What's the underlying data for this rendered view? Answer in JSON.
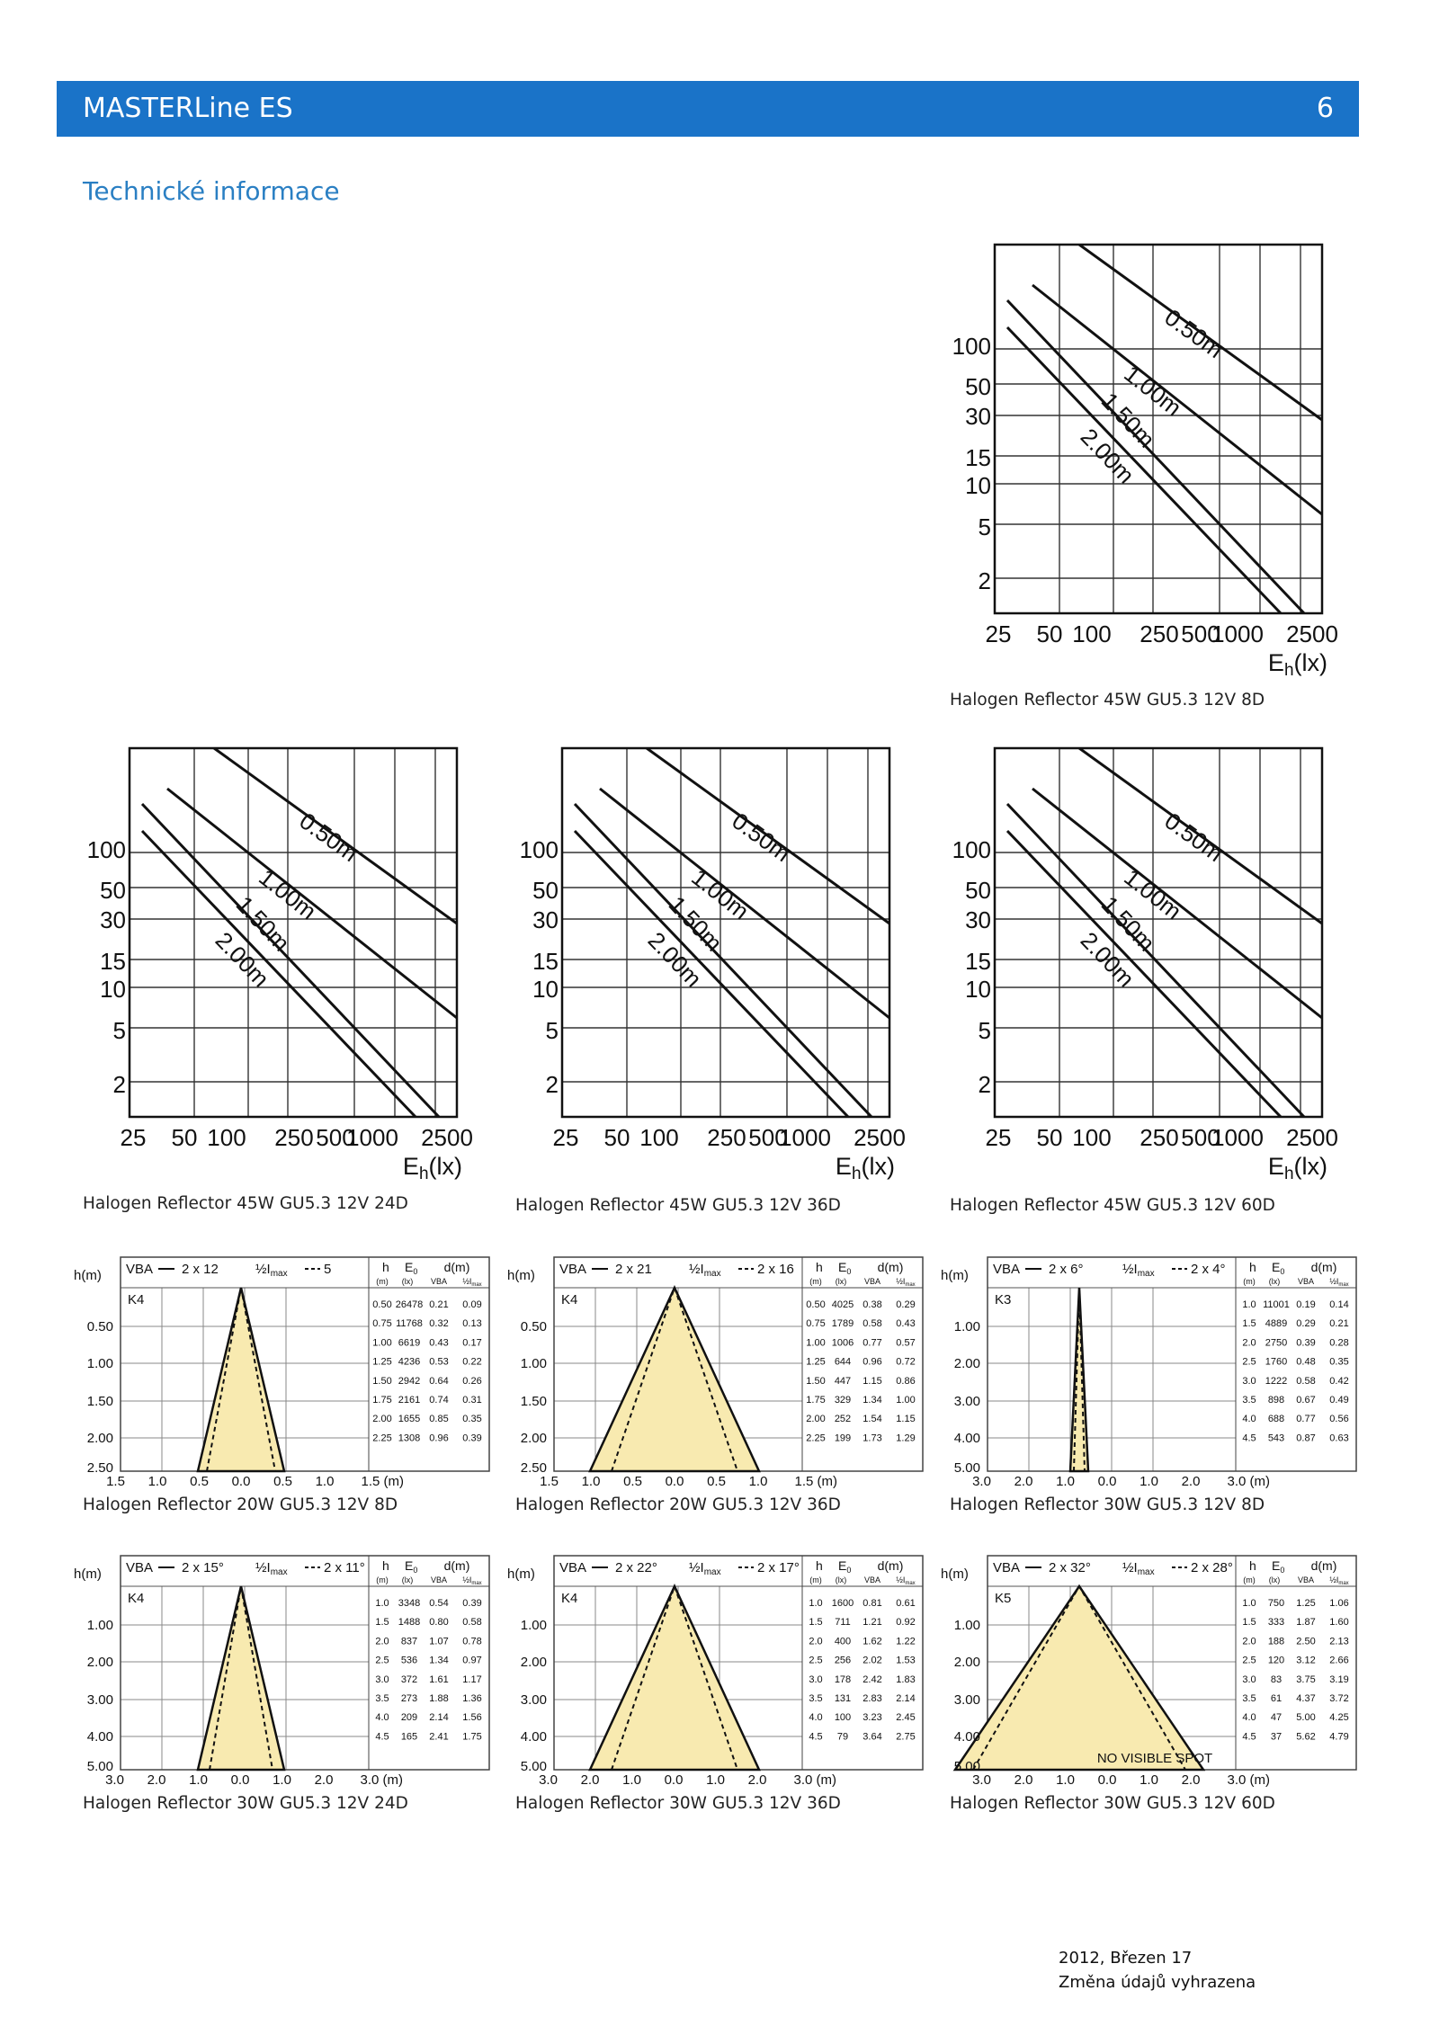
{
  "header": {
    "title": "MASTERLine ES",
    "page_number": "6"
  },
  "section_title": "Technické informace",
  "footer": {
    "date": "2012, Březen 17",
    "note": "Změna údajů vyhrazena"
  },
  "illuminance_charts": {
    "y_ticks": [
      "100",
      "50",
      "30",
      "15",
      "10",
      "5",
      "2"
    ],
    "x_ticks": [
      "25",
      "50",
      "100",
      "250",
      "500",
      "1000",
      "2500"
    ],
    "x_unit": "Eh",
    "x_unit_sub": "h",
    "x_unit_paren": "(lx)",
    "items": [
      {
        "caption": "Halogen Reflector 45W GU5.3 12V 8D",
        "lines": [
          "0.50m",
          "1.00m",
          "1.50m",
          "2.00m"
        ]
      },
      {
        "caption": "Halogen Reflector 45W GU5.3 12V 24D",
        "lines": [
          "0.50m",
          "1.00m",
          "1.50m",
          "2.00m"
        ]
      },
      {
        "caption": "Halogen Reflector 45W GU5.3 12V 36D",
        "lines": [
          "0.50m",
          "1.00m",
          "1.50m",
          "2.00m"
        ]
      },
      {
        "caption": "Halogen Reflector 45W GU5.3 12V 60D",
        "lines": [
          "0.50m",
          "1.00m",
          "1.50m",
          "2.00m"
        ]
      }
    ]
  },
  "beam_charts": {
    "hm_label": "h(m)",
    "h_label": "h",
    "e0_label": "E",
    "e0_sub": "0",
    "dm_label": "d(m)",
    "unit_m": "(m)",
    "unit_lx": "(lx)",
    "vba_col": "VBA",
    "half_col": "½I",
    "half_col_sub": "max",
    "vba_label": "VBA",
    "half_label": "½I",
    "half_sub": "max",
    "items": [
      {
        "caption": "Halogen Reflector 20W GU5.3 12V 8D",
        "vba": "2 x 12",
        "half": "5",
        "class": "K4",
        "x_ticks": [
          "1.5",
          "1.0",
          "0.5",
          "0.0",
          "0.5",
          "1.0",
          "1.5 (m)"
        ],
        "y_ticks": [
          "0.50",
          "1.00",
          "1.50",
          "2.00",
          "2.50"
        ],
        "note": "",
        "table": [
          [
            "0.50",
            "26478",
            "0.21",
            "0.09"
          ],
          [
            "0.75",
            "11768",
            "0.32",
            "0.13"
          ],
          [
            "1.00",
            "6619",
            "0.43",
            "0.17"
          ],
          [
            "1.25",
            "4236",
            "0.53",
            "0.22"
          ],
          [
            "1.50",
            "2942",
            "0.64",
            "0.26"
          ],
          [
            "1.75",
            "2161",
            "0.74",
            "0.31"
          ],
          [
            "2.00",
            "1655",
            "0.85",
            "0.35"
          ],
          [
            "2.25",
            "1308",
            "0.96",
            "0.39"
          ]
        ]
      },
      {
        "caption": "Halogen Reflector 20W GU5.3 12V 36D",
        "vba": "2 x 21",
        "half": "2 x 16",
        "class": "K4",
        "x_ticks": [
          "1.5",
          "1.0",
          "0.5",
          "0.0",
          "0.5",
          "1.0",
          "1.5 (m)"
        ],
        "y_ticks": [
          "0.50",
          "1.00",
          "1.50",
          "2.00",
          "2.50"
        ],
        "note": "",
        "table": [
          [
            "0.50",
            "4025",
            "0.38",
            "0.29"
          ],
          [
            "0.75",
            "1789",
            "0.58",
            "0.43"
          ],
          [
            "1.00",
            "1006",
            "0.77",
            "0.57"
          ],
          [
            "1.25",
            "644",
            "0.96",
            "0.72"
          ],
          [
            "1.50",
            "447",
            "1.15",
            "0.86"
          ],
          [
            "1.75",
            "329",
            "1.34",
            "1.00"
          ],
          [
            "2.00",
            "252",
            "1.54",
            "1.15"
          ],
          [
            "2.25",
            "199",
            "1.73",
            "1.29"
          ]
        ]
      },
      {
        "caption": "Halogen Reflector 30W GU5.3 12V 8D",
        "vba": "2 x 6°",
        "half": "2 x 4°",
        "class": "K3",
        "x_ticks": [
          "3.0",
          "2.0",
          "1.0",
          "0.0",
          "1.0",
          "2.0",
          "3.0 (m)"
        ],
        "y_ticks": [
          "1.00",
          "2.00",
          "3.00",
          "4.00",
          "5.00"
        ],
        "note": "",
        "table": [
          [
            "1.0",
            "11001",
            "0.19",
            "0.14"
          ],
          [
            "1.5",
            "4889",
            "0.29",
            "0.21"
          ],
          [
            "2.0",
            "2750",
            "0.39",
            "0.28"
          ],
          [
            "2.5",
            "1760",
            "0.48",
            "0.35"
          ],
          [
            "3.0",
            "1222",
            "0.58",
            "0.42"
          ],
          [
            "3.5",
            "898",
            "0.67",
            "0.49"
          ],
          [
            "4.0",
            "688",
            "0.77",
            "0.56"
          ],
          [
            "4.5",
            "543",
            "0.87",
            "0.63"
          ]
        ]
      },
      {
        "caption": "Halogen Reflector 30W GU5.3 12V 24D",
        "vba": "2 x 15°",
        "half": "2 x 11°",
        "class": "K4",
        "x_ticks": [
          "3.0",
          "2.0",
          "1.0",
          "0.0",
          "1.0",
          "2.0",
          "3.0 (m)"
        ],
        "y_ticks": [
          "1.00",
          "2.00",
          "3.00",
          "4.00",
          "5.00"
        ],
        "note": "",
        "table": [
          [
            "1.0",
            "3348",
            "0.54",
            "0.39"
          ],
          [
            "1.5",
            "1488",
            "0.80",
            "0.58"
          ],
          [
            "2.0",
            "837",
            "1.07",
            "0.78"
          ],
          [
            "2.5",
            "536",
            "1.34",
            "0.97"
          ],
          [
            "3.0",
            "372",
            "1.61",
            "1.17"
          ],
          [
            "3.5",
            "273",
            "1.88",
            "1.36"
          ],
          [
            "4.0",
            "209",
            "2.14",
            "1.56"
          ],
          [
            "4.5",
            "165",
            "2.41",
            "1.75"
          ]
        ]
      },
      {
        "caption": "Halogen Reflector 30W GU5.3 12V 36D",
        "vba": "2 x 22°",
        "half": "2 x 17°",
        "class": "K4",
        "x_ticks": [
          "3.0",
          "2.0",
          "1.0",
          "0.0",
          "1.0",
          "2.0",
          "3.0 (m)"
        ],
        "y_ticks": [
          "1.00",
          "2.00",
          "3.00",
          "4.00",
          "5.00"
        ],
        "note": "",
        "table": [
          [
            "1.0",
            "1600",
            "0.81",
            "0.61"
          ],
          [
            "1.5",
            "711",
            "1.21",
            "0.92"
          ],
          [
            "2.0",
            "400",
            "1.62",
            "1.22"
          ],
          [
            "2.5",
            "256",
            "2.02",
            "1.53"
          ],
          [
            "3.0",
            "178",
            "2.42",
            "1.83"
          ],
          [
            "3.5",
            "131",
            "2.83",
            "2.14"
          ],
          [
            "4.0",
            "100",
            "3.23",
            "2.45"
          ],
          [
            "4.5",
            "79",
            "3.64",
            "2.75"
          ]
        ]
      },
      {
        "caption": "Halogen Reflector 30W GU5.3 12V 60D",
        "vba": "2 x 32°",
        "half": "2 x 28°",
        "class": "K5",
        "x_ticks": [
          "3.0",
          "2.0",
          "1.0",
          "0.0",
          "1.0",
          "2.0",
          "3.0 (m)"
        ],
        "y_ticks": [
          "1.00",
          "2.00",
          "3.00",
          "4.00",
          "5.00"
        ],
        "note": "NO VISIBLE SPOT",
        "table": [
          [
            "1.0",
            "750",
            "1.25",
            "1.06"
          ],
          [
            "1.5",
            "333",
            "1.87",
            "1.60"
          ],
          [
            "2.0",
            "188",
            "2.50",
            "2.13"
          ],
          [
            "2.5",
            "120",
            "3.12",
            "2.66"
          ],
          [
            "3.0",
            "83",
            "3.75",
            "3.19"
          ],
          [
            "3.5",
            "61",
            "4.37",
            "3.72"
          ],
          [
            "4.0",
            "47",
            "5.00",
            "4.25"
          ],
          [
            "4.5",
            "37",
            "5.62",
            "4.79"
          ]
        ]
      }
    ]
  }
}
